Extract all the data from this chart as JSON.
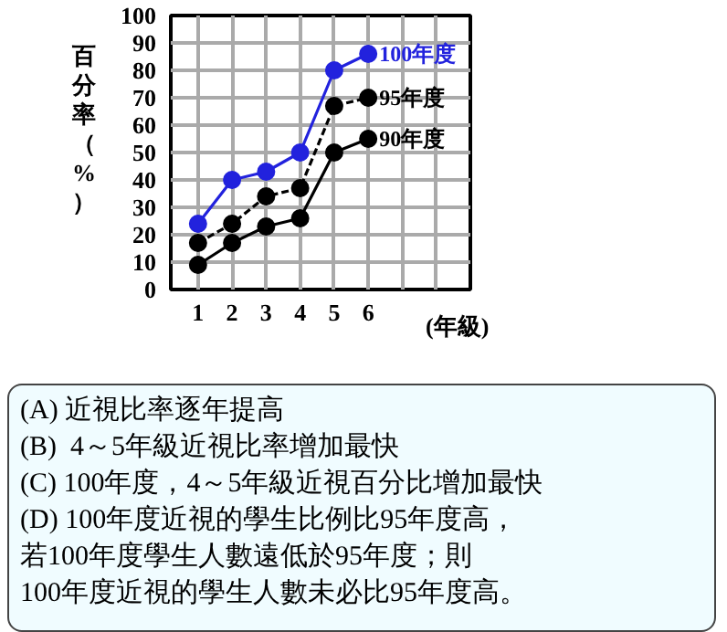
{
  "chart_data": {
    "type": "line",
    "ylabel": "百分率（%）",
    "xlabel": "(年級)",
    "x": [
      1,
      2,
      3,
      4,
      5,
      6
    ],
    "series": [
      {
        "name": "100年度",
        "color": "#2222dd",
        "values": [
          24,
          40,
          43,
          50,
          80,
          86
        ],
        "line_style": "solid"
      },
      {
        "name": "95年度",
        "color": "#000000",
        "values": [
          17,
          24,
          34,
          37,
          67,
          70
        ],
        "line_style": "dashed"
      },
      {
        "name": "90年度",
        "color": "#000000",
        "values": [
          9,
          17,
          23,
          26,
          50,
          55
        ],
        "line_style": "solid"
      }
    ],
    "xlim": [
      0.2,
      9
    ],
    "xticks": [
      1,
      2,
      3,
      4,
      5,
      6,
      {
        "value": 7,
        "label": null
      },
      {
        "value": 8,
        "label": null
      }
    ],
    "ylim": [
      0,
      100
    ],
    "yticks": [
      0,
      10,
      20,
      30,
      40,
      50,
      60,
      70,
      80,
      90,
      100
    ],
    "grid": true,
    "marker": "circle",
    "annotations": [
      "(A) 近視比率逐年提高",
      "(B)  4～5年級近視比率增加最快",
      "(C) 100年度，4～5年級近視百分比增加最快",
      "(D) 100年度近視的學生比例比95年度高，",
      "若100年度學生人數遠低於95年度；則",
      "100年度近視的學生人數未必比95年度高。"
    ]
  }
}
